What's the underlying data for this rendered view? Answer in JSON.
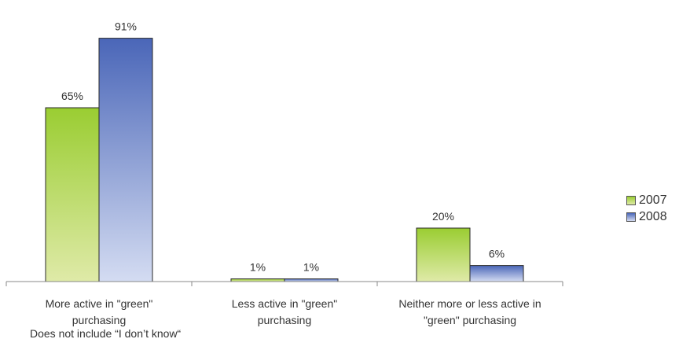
{
  "chart_data": {
    "type": "bar",
    "categories": [
      "More active in \"green\" purchasing",
      "Less active in \"green\" purchasing",
      "Neither more or less active in \"green\" purchasing"
    ],
    "category_labels": [
      [
        "More active in \"green\"",
        "purchasing"
      ],
      [
        "Less active in \"green\"",
        "purchasing"
      ],
      [
        "Neither more or less active in",
        "\"green\" purchasing"
      ]
    ],
    "series": [
      {
        "name": "2007",
        "values": [
          65,
          1,
          20
        ],
        "labels": [
          "65%",
          "1%",
          "20%"
        ],
        "color": "#9acd32"
      },
      {
        "name": "2008",
        "values": [
          91,
          1,
          6
        ],
        "labels": [
          "91%",
          "1%",
          "6%"
        ],
        "color": "#4a6ab8"
      }
    ],
    "ylim": [
      0,
      100
    ],
    "grid": false,
    "legend_position": "right"
  },
  "footnote": "Does not include “I don’t know“"
}
